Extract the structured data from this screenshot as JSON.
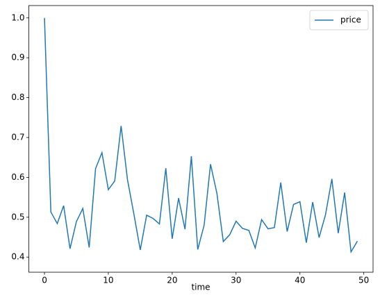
{
  "chart_data": {
    "type": "line",
    "x": [
      0,
      1,
      2,
      3,
      4,
      5,
      6,
      7,
      8,
      9,
      10,
      11,
      12,
      13,
      14,
      15,
      16,
      17,
      18,
      19,
      20,
      21,
      22,
      23,
      24,
      25,
      26,
      27,
      28,
      29,
      30,
      31,
      32,
      33,
      34,
      35,
      36,
      37,
      38,
      39,
      40,
      41,
      42,
      43,
      44,
      45,
      46,
      47,
      48,
      49
    ],
    "series": [
      {
        "name": "price",
        "color": "#1f77b4",
        "values": [
          1.0,
          0.513,
          0.484,
          0.529,
          0.421,
          0.489,
          0.522,
          0.424,
          0.622,
          0.662,
          0.569,
          0.591,
          0.729,
          0.594,
          0.508,
          0.418,
          0.505,
          0.497,
          0.483,
          0.623,
          0.446,
          0.548,
          0.47,
          0.653,
          0.419,
          0.48,
          0.633,
          0.56,
          0.439,
          0.456,
          0.49,
          0.472,
          0.467,
          0.423,
          0.494,
          0.471,
          0.474,
          0.587,
          0.464,
          0.532,
          0.539,
          0.436,
          0.538,
          0.449,
          0.506,
          0.596,
          0.46,
          0.562,
          0.413,
          0.44
        ]
      }
    ],
    "xlabel": "time",
    "xlim": [
      -2.45,
      51.45
    ],
    "xticks": [
      0,
      10,
      20,
      30,
      40,
      50
    ],
    "ylim": [
      0.362,
      1.031
    ],
    "yticks": [
      0.4,
      0.5,
      0.6,
      0.7,
      0.8,
      0.9,
      {
        "value": 1,
        "label": "1.0"
      }
    ],
    "legend": "upper right"
  }
}
